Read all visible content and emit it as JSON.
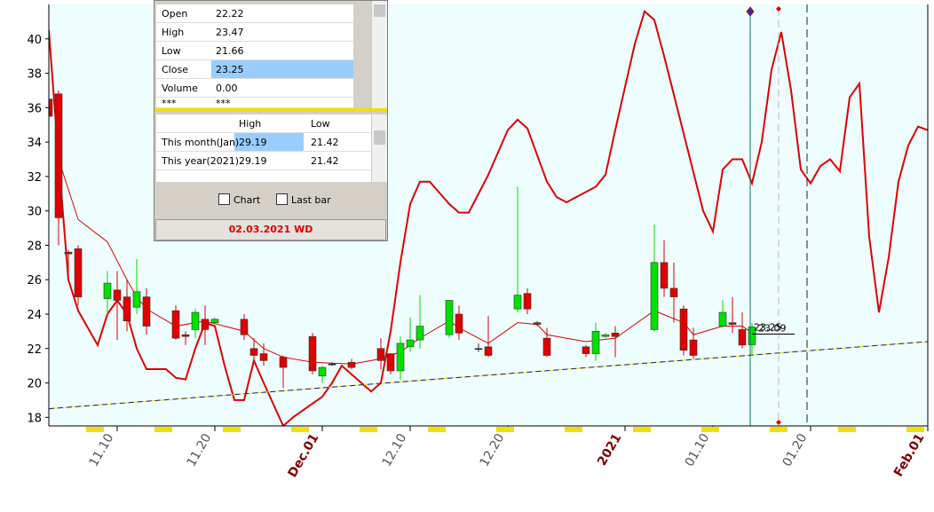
{
  "chart_data": {
    "type": "candlestick",
    "xlim": [
      0,
      90
    ],
    "ylim": [
      17.5,
      42
    ],
    "yticks": [
      18,
      20,
      22,
      24,
      26,
      28,
      30,
      32,
      34,
      36,
      38,
      40
    ],
    "xticks": [
      {
        "value": 7,
        "label": "11.10"
      },
      {
        "value": 17,
        "label": "11.20"
      },
      {
        "value": 28,
        "label": "Dec.01"
      },
      {
        "value": 37,
        "label": "12.10"
      },
      {
        "value": 47,
        "label": "12.20"
      },
      {
        "value": 59,
        "label": "2021"
      },
      {
        "value": 68,
        "label": "01.10"
      },
      {
        "value": 78,
        "label": "01.20"
      },
      {
        "value": 90,
        "label": "Feb.01"
      }
    ],
    "up_color": "#00e000",
    "down_color": "#e00000",
    "candles": {
      "x": [
        0,
        1,
        2,
        3,
        6,
        7,
        8,
        9,
        10,
        13,
        14,
        15,
        16,
        17,
        20,
        21,
        22,
        24,
        27,
        28,
        29,
        31,
        34,
        35,
        36,
        37,
        38,
        41,
        42,
        44,
        45,
        48,
        49,
        50,
        51,
        55,
        56,
        57,
        58,
        62,
        63,
        64,
        65,
        66,
        69,
        70,
        71,
        72
      ],
      "open": [
        36.5,
        36.8,
        27.6,
        27.8,
        24.9,
        25.4,
        25,
        24.4,
        25,
        24.2,
        22.8,
        23.1,
        23.7,
        23.5,
        23.7,
        22,
        21.7,
        21.5,
        22.7,
        20.4,
        21.1,
        21.2,
        22,
        21.7,
        20.7,
        22.1,
        22.5,
        22.8,
        24,
        22,
        22.1,
        24.3,
        25.2,
        23.5,
        22.6,
        22.1,
        21.7,
        22.7,
        22.9,
        23.1,
        27,
        25.5,
        24.3,
        22.5,
        23.3,
        23.5,
        23.1,
        22.22
      ],
      "high": [
        37,
        37,
        27.7,
        28,
        26.5,
        26.5,
        26,
        27.2,
        25.5,
        24.5,
        23,
        24.3,
        24.5,
        23.8,
        24,
        22.6,
        22.3,
        21.6,
        22.9,
        21,
        21.2,
        21.4,
        22.6,
        21.7,
        22.7,
        23.8,
        25.1,
        24.8,
        24.5,
        22.3,
        23.9,
        31.4,
        25.5,
        23.6,
        23.2,
        22.2,
        23.5,
        22.9,
        23.3,
        29.2,
        28.3,
        27,
        24.5,
        23.2,
        24.8,
        25,
        24.1,
        23.47
      ],
      "low": [
        35,
        28,
        26,
        24.5,
        24,
        22.5,
        23,
        24,
        22.8,
        22.5,
        22.2,
        22.6,
        22.2,
        23.4,
        22.5,
        21.2,
        21,
        19.7,
        20.5,
        20,
        21,
        20.8,
        20.8,
        20.5,
        20.2,
        21.8,
        22,
        22.6,
        22.5,
        21.8,
        21.5,
        24.1,
        24,
        23.3,
        21.5,
        21.5,
        21.3,
        22.6,
        21.5,
        23,
        25,
        23.5,
        21.6,
        21.4,
        23.2,
        22.9,
        22,
        21.66
      ],
      "close": [
        35.5,
        29.6,
        27.5,
        25,
        25.8,
        24.8,
        23.6,
        25.3,
        23.3,
        22.6,
        22.7,
        24.1,
        23.1,
        23.7,
        22.8,
        21.6,
        21.3,
        20.9,
        20.7,
        20.9,
        21.1,
        20.9,
        21.3,
        20.7,
        22.3,
        22.5,
        23.3,
        24.8,
        22.9,
        22,
        21.6,
        25.1,
        24.3,
        23.4,
        21.6,
        21.7,
        23,
        22.8,
        22.7,
        27,
        25.5,
        25,
        21.9,
        21.6,
        24.1,
        23.4,
        22.2,
        23.25
      ]
    },
    "lines": [
      {
        "color": "#e00000",
        "line_width": 2,
        "x": [
          0,
          1,
          2,
          3,
          5,
          6,
          7,
          8,
          9,
          10,
          12,
          13,
          14,
          15,
          16,
          17,
          18,
          19,
          20,
          21,
          22,
          24,
          25,
          27,
          28,
          29,
          30,
          31,
          32,
          33,
          34,
          35,
          36,
          37,
          38,
          39,
          41,
          42,
          43,
          45,
          47,
          48,
          49,
          51,
          52,
          53,
          56,
          57,
          58,
          60,
          61,
          62,
          63,
          65,
          67,
          68,
          69,
          70,
          71,
          72,
          73,
          74,
          75,
          76,
          77,
          78,
          79,
          80,
          81,
          82,
          83,
          84,
          85,
          86,
          87,
          88,
          89,
          90
        ],
        "values": [
          40.5,
          33,
          26,
          24.2,
          22.2,
          24,
          24.8,
          24,
          22,
          20.8,
          20.8,
          20.3,
          20.2,
          22,
          23.5,
          23.3,
          21,
          19,
          19,
          21.3,
          20,
          17.5,
          18,
          18.8,
          19.2,
          20,
          21,
          20.5,
          20,
          19.5,
          20,
          23,
          27,
          30.4,
          31.7,
          31.7,
          30.4,
          29.9,
          29.9,
          32.1,
          34.7,
          35.3,
          34.8,
          31.7,
          30.8,
          30.5,
          31.4,
          32.1,
          34.7,
          39.7,
          41.6,
          41.1,
          39,
          34.5,
          30,
          28.8,
          32.4,
          33,
          33,
          31.6,
          34,
          38.2,
          40.4,
          37,
          32.4,
          31.6,
          32.6,
          33,
          32.3,
          36.6,
          37.4,
          28.5,
          24.1,
          27.3,
          31.7,
          33.8,
          34.9,
          34.7
        ]
      },
      {
        "color": "#e00000",
        "line_width": 1,
        "x": [
          0,
          1,
          3,
          6,
          8,
          9,
          10,
          13,
          16,
          20,
          22,
          24,
          27,
          31,
          34,
          36,
          38,
          41,
          42,
          45,
          48,
          50,
          51,
          55,
          58,
          62,
          65,
          66,
          69,
          71,
          72
        ],
        "values": [
          40.5,
          33,
          29.5,
          28.2,
          26,
          25,
          24.3,
          23.3,
          23.6,
          23,
          22,
          21.5,
          21.2,
          21.1,
          21.4,
          21.8,
          22.6,
          23.6,
          23.2,
          22.3,
          23.5,
          23.4,
          22.8,
          22.4,
          22.6,
          24.2,
          23.5,
          22.8,
          23.3,
          23.3,
          22.9
        ]
      },
      {
        "color": "#1a1a8c",
        "line_width": 1,
        "dash_color": "#f0e000",
        "x": [
          0,
          90
        ],
        "values": [
          18.5,
          22.4
        ]
      }
    ],
    "price_labels": [
      23.25,
      23.09
    ]
  },
  "panel": {
    "quote_rows": [
      [
        "Open",
        "22.22"
      ],
      [
        "High",
        "23.47"
      ],
      [
        "Low",
        "21.66"
      ],
      [
        "Close",
        "23.25"
      ],
      [
        "Volume",
        "0.00"
      ],
      [
        "***",
        "***"
      ]
    ],
    "range_header": [
      "High",
      "Low"
    ],
    "range_rows": [
      [
        "This month(Jan)",
        "29.19",
        "21.42"
      ],
      [
        "This year(2021)",
        "29.19",
        "21.42"
      ]
    ],
    "checkboxes": [
      "Chart",
      "Last bar"
    ],
    "footer": "02.03.2021 WD"
  }
}
